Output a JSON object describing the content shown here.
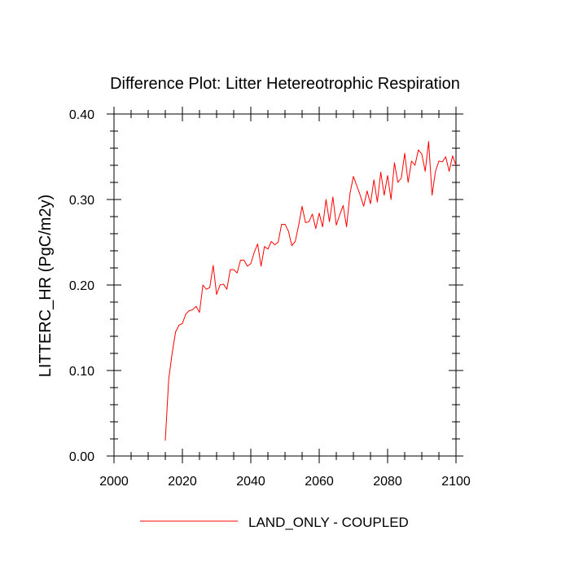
{
  "chart_data": {
    "type": "line",
    "title": "Difference Plot: Litter Hetereotrophic Respiration",
    "xlabel": "",
    "ylabel": "LITTERC_HR  (PgC/m2y)",
    "xlim": [
      2000,
      2100
    ],
    "ylim": [
      0.0,
      0.4
    ],
    "x_ticks": [
      2000,
      2020,
      2040,
      2060,
      2080,
      2100
    ],
    "x_tick_labels": [
      "2000",
      "2020",
      "2040",
      "2060",
      "2080",
      "2100"
    ],
    "y_ticks": [
      0.0,
      0.1,
      0.2,
      0.3,
      0.4
    ],
    "y_tick_labels": [
      "0.00",
      "0.10",
      "0.20",
      "0.30",
      "0.40"
    ],
    "legend_position": "bottom-center",
    "series": [
      {
        "name": "LAND_ONLY - COUPLED",
        "color": "#ff0000",
        "x": [
          2015,
          2016,
          2017,
          2018,
          2019,
          2020,
          2021,
          2022,
          2023,
          2024,
          2025,
          2026,
          2027,
          2028,
          2029,
          2030,
          2031,
          2032,
          2033,
          2034,
          2035,
          2036,
          2037,
          2038,
          2039,
          2040,
          2041,
          2042,
          2043,
          2044,
          2045,
          2046,
          2047,
          2048,
          2049,
          2050,
          2051,
          2052,
          2053,
          2054,
          2055,
          2056,
          2057,
          2058,
          2059,
          2060,
          2061,
          2062,
          2063,
          2064,
          2065,
          2066,
          2067,
          2068,
          2069,
          2070,
          2071,
          2072,
          2073,
          2074,
          2075,
          2076,
          2077,
          2078,
          2079,
          2080,
          2081,
          2082,
          2083,
          2084,
          2085,
          2086,
          2087,
          2088,
          2089,
          2090,
          2091,
          2092,
          2093,
          2094,
          2095,
          2096,
          2097,
          2098,
          2099,
          2100
        ],
        "values": [
          0.018,
          0.09,
          0.12,
          0.145,
          0.153,
          0.155,
          0.166,
          0.17,
          0.171,
          0.175,
          0.168,
          0.2,
          0.195,
          0.197,
          0.223,
          0.189,
          0.2,
          0.201,
          0.195,
          0.218,
          0.218,
          0.214,
          0.229,
          0.229,
          0.222,
          0.225,
          0.238,
          0.248,
          0.222,
          0.245,
          0.242,
          0.251,
          0.247,
          0.25,
          0.271,
          0.271,
          0.263,
          0.246,
          0.251,
          0.27,
          0.292,
          0.273,
          0.274,
          0.283,
          0.266,
          0.284,
          0.268,
          0.3,
          0.274,
          0.303,
          0.27,
          0.282,
          0.293,
          0.268,
          0.307,
          0.327,
          0.316,
          0.305,
          0.292,
          0.31,
          0.295,
          0.323,
          0.297,
          0.332,
          0.305,
          0.328,
          0.3,
          0.343,
          0.32,
          0.325,
          0.354,
          0.32,
          0.345,
          0.34,
          0.358,
          0.353,
          0.333,
          0.368,
          0.305,
          0.333,
          0.345,
          0.344,
          0.35,
          0.333,
          0.351,
          0.34
        ]
      }
    ]
  }
}
